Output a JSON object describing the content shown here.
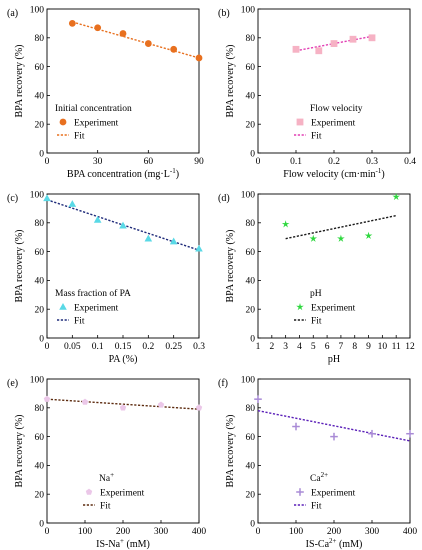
{
  "chart_data": [
    {
      "panel": "(a)",
      "type": "scatter",
      "xlabel": "BPA concentration (mg·L",
      "xlabel_sup": "-1",
      "xlabel_end": ")",
      "ylabel": "BPA recovery  (%)",
      "xlim": [
        0,
        90
      ],
      "ylim": [
        0,
        100
      ],
      "xticks": [
        "0",
        "30",
        "60",
        "90"
      ],
      "yticks": [
        "0",
        "20",
        "40",
        "60",
        "80",
        "100"
      ],
      "legend_title": "Initial concentration",
      "legend_position": "bottom-left",
      "marker": "circle",
      "marker_color": "#E8701F",
      "line_color": "#E8701F",
      "series": [
        {
          "name": "Experiment",
          "x": [
            15,
            30,
            45,
            60,
            75,
            90
          ],
          "y": [
            90,
            87,
            83,
            76,
            72,
            66
          ]
        },
        {
          "name": "Fit",
          "line": [
            [
              15,
              91
            ],
            [
              90,
              66
            ]
          ]
        }
      ]
    },
    {
      "panel": "(b)",
      "type": "scatter",
      "xlabel": "Flow velocity (cm·min",
      "xlabel_sup": "-1",
      "xlabel_end": ")",
      "ylabel": "BPA recovery  (%)",
      "xlim": [
        0,
        0.4
      ],
      "ylim": [
        0,
        100
      ],
      "xticks": [
        "0",
        "0.1",
        "0.2",
        "0.3",
        "0.4"
      ],
      "yticks": [
        "0",
        "20",
        "40",
        "60",
        "80",
        "100"
      ],
      "legend_title": "Flow velocity",
      "legend_position": "bottom-right",
      "marker": "square",
      "marker_color": "#F6B2C4",
      "line_color": "#E23FB4",
      "series": [
        {
          "name": "Experiment",
          "x": [
            0.1,
            0.16,
            0.2,
            0.25,
            0.3
          ],
          "y": [
            72,
            71,
            76,
            79,
            80
          ]
        },
        {
          "name": "Fit",
          "line": [
            [
              0.1,
              71
            ],
            [
              0.3,
              81
            ]
          ]
        }
      ]
    },
    {
      "panel": "(c)",
      "type": "scatter",
      "xlabel": "PA (%)",
      "ylabel": "BPA recovery  (%)",
      "xlim": [
        0,
        0.3
      ],
      "ylim": [
        0,
        100
      ],
      "xticks": [
        "0",
        "0.05",
        "0.1",
        "0.15",
        "0.2",
        "0.25",
        "0.3"
      ],
      "yticks": [
        "0",
        "20",
        "40",
        "60",
        "80",
        "100"
      ],
      "legend_title": "Mass fraction of PA",
      "legend_position": "bottom-left",
      "marker": "triangle",
      "marker_color": "#59D9E6",
      "line_color": "#1F2B7A",
      "series": [
        {
          "name": "Experiment",
          "x": [
            0,
            0.05,
            0.1,
            0.15,
            0.2,
            0.25,
            0.3
          ],
          "y": [
            97,
            93,
            82,
            78,
            69,
            67,
            62
          ]
        },
        {
          "name": "Fit",
          "line": [
            [
              0,
              96
            ],
            [
              0.3,
              61
            ]
          ]
        }
      ]
    },
    {
      "panel": "(d)",
      "type": "scatter",
      "xlabel": "pH",
      "ylabel": "BPA recovery  (%)",
      "xlim": [
        1,
        12
      ],
      "ylim": [
        0,
        100
      ],
      "xticks": [
        "1",
        "2",
        "3",
        "4",
        "5",
        "6",
        "7",
        "8",
        "9",
        "10",
        "11",
        "12"
      ],
      "yticks": [
        "0",
        "20",
        "40",
        "60",
        "80",
        "100"
      ],
      "legend_title": "pH",
      "legend_position": "bottom-right",
      "marker": "star",
      "marker_color": "#2FD83F",
      "line_color": "#1A1A1A",
      "series": [
        {
          "name": "Experiment",
          "x": [
            3,
            5,
            7,
            9,
            11
          ],
          "y": [
            79,
            69,
            69,
            71,
            98
          ]
        },
        {
          "name": "Fit",
          "line": [
            [
              3,
              69
            ],
            [
              11,
              85
            ]
          ]
        }
      ]
    },
    {
      "panel": "(e)",
      "type": "scatter",
      "xlabel": "IS-Na",
      "xlabel_sup": "+",
      "xlabel_end": " (mM)",
      "ylabel": "BPA recovery  (%)",
      "xlim": [
        0,
        400
      ],
      "ylim": [
        0,
        100
      ],
      "xticks": [
        "0",
        "100",
        "200",
        "300",
        "400"
      ],
      "yticks": [
        "0",
        "20",
        "40",
        "60",
        "80",
        "100"
      ],
      "legend_title": "Na",
      "legend_title_sup": "+",
      "legend_position": "bottom-right",
      "marker": "pentagon",
      "marker_color": "#EBC7E8",
      "line_color": "#5C2A0E",
      "series": [
        {
          "name": "Experiment",
          "x": [
            0,
            100,
            200,
            300,
            400
          ],
          "y": [
            86,
            84,
            80,
            82,
            80
          ]
        },
        {
          "name": "Fit",
          "line": [
            [
              0,
              86
            ],
            [
              400,
              79
            ]
          ]
        }
      ]
    },
    {
      "panel": "(f)",
      "type": "scatter",
      "xlabel": "IS-Ca",
      "xlabel_sup": "2+",
      "xlabel_end": " (mM)",
      "ylabel": "BPA recovery  (%)",
      "xlim": [
        0,
        400
      ],
      "ylim": [
        0,
        100
      ],
      "xticks": [
        "0",
        "100",
        "200",
        "300",
        "400"
      ],
      "yticks": [
        "0",
        "20",
        "40",
        "60",
        "80",
        "100"
      ],
      "legend_title": "Ca",
      "legend_title_sup": "2+",
      "legend_position": "bottom-right",
      "marker": "plus",
      "marker_color": "#A98AD6",
      "line_color": "#5A1FB8",
      "series": [
        {
          "name": "Experiment",
          "x": [
            0,
            100,
            200,
            300,
            400
          ],
          "y": [
            86,
            67,
            60,
            62,
            62
          ]
        },
        {
          "name": "Fit",
          "line": [
            [
              0,
              78
            ],
            [
              400,
              57
            ]
          ]
        }
      ]
    }
  ]
}
